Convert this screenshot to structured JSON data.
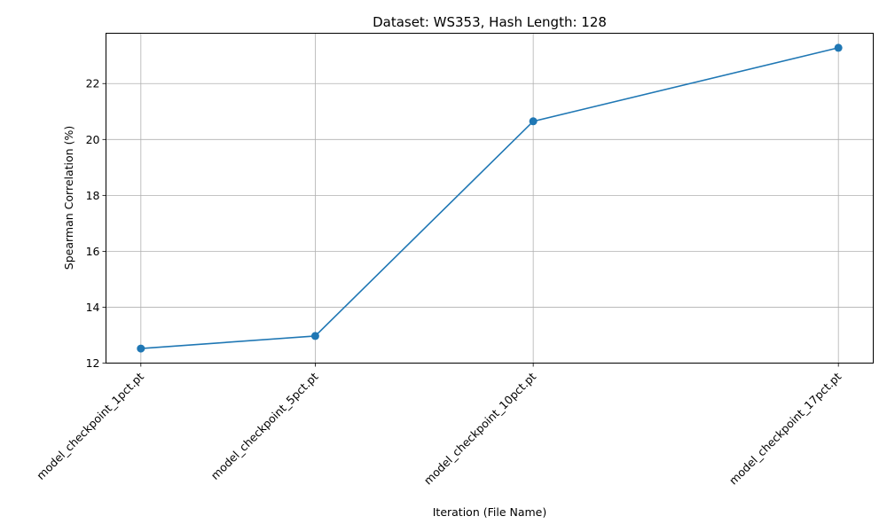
{
  "chart_data": {
    "type": "line",
    "title": "Dataset: WS353, Hash Length: 128",
    "xlabel": "Iteration (File Name)",
    "ylabel": "Spearman Correlation (%)",
    "x_positions": [
      1,
      5,
      10,
      17
    ],
    "categories": [
      "model_checkpoint_1pct.pt",
      "model_checkpoint_5pct.pt",
      "model_checkpoint_10pct.pt",
      "model_checkpoint_17pct.pt"
    ],
    "series": [
      {
        "values": [
          12.52,
          12.97,
          20.65,
          23.28
        ]
      }
    ],
    "xlim": [
      0.2,
      17.8
    ],
    "ylim": [
      12.0,
      23.8
    ],
    "yticks": [
      12,
      14,
      16,
      18,
      20,
      22
    ],
    "grid": true,
    "line_color": "#1f77b4"
  }
}
